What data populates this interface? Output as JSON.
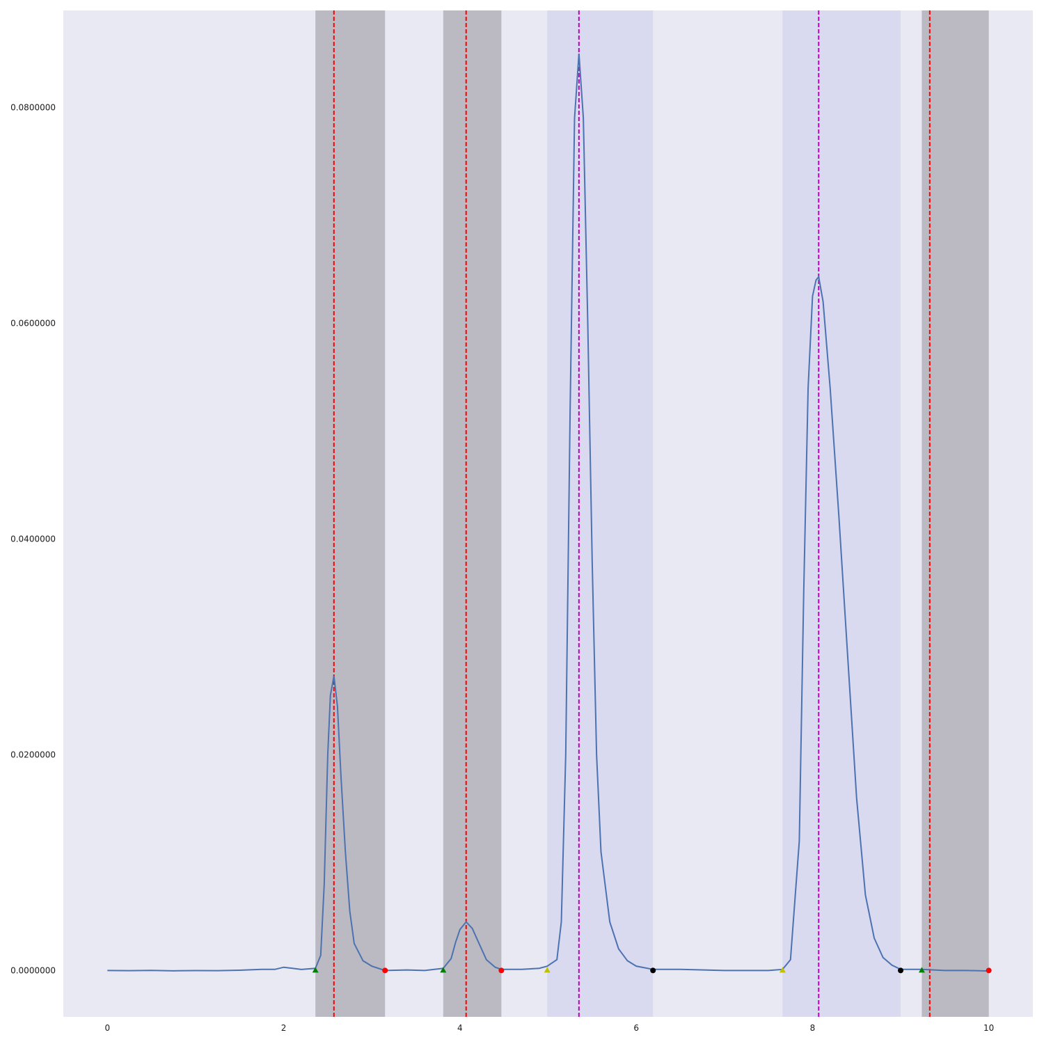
{
  "chart_data": {
    "type": "line",
    "title": "",
    "xlabel": "",
    "ylabel": "",
    "xlim": [
      -0.5,
      10.5
    ],
    "ylim": [
      -0.0043,
      0.089
    ],
    "grid": false,
    "colors": {
      "background": "#e9e9f3",
      "line": "#4c72b0",
      "gray_region": "#bbbac3",
      "blue_region": "#d9d9f0",
      "red_dashed": "#ff0000",
      "magenta_dashed": "#c000c0",
      "start_marker_green": "#008000",
      "start_marker_yellow": "#c0c000",
      "end_marker_red": "#ff0000",
      "end_marker_black": "#000000"
    },
    "x_ticks": [
      {
        "value": 0,
        "label": "0"
      },
      {
        "value": 2,
        "label": "2"
      },
      {
        "value": 4,
        "label": "4"
      },
      {
        "value": 6,
        "label": "6"
      },
      {
        "value": 8,
        "label": "8"
      },
      {
        "value": 10,
        "label": "10"
      }
    ],
    "y_ticks": [
      {
        "value": 0.0,
        "label": "0.0000000"
      },
      {
        "value": 0.02,
        "label": "0.0200000"
      },
      {
        "value": 0.04,
        "label": "0.0400000"
      },
      {
        "value": 0.06,
        "label": "0.0600000"
      },
      {
        "value": 0.08,
        "label": "0.0800000"
      }
    ],
    "peaks": [
      {
        "start": 2.36,
        "apex": 2.57,
        "end": 3.15,
        "height": 0.0273,
        "region": "gray",
        "line": "red",
        "start_marker": "green-triangle",
        "end_marker": "red-circle"
      },
      {
        "start": 3.81,
        "apex": 4.07,
        "end": 4.47,
        "height": 0.0045,
        "region": "gray",
        "line": "red",
        "start_marker": "green-triangle",
        "end_marker": "red-circle"
      },
      {
        "start": 4.99,
        "apex": 5.35,
        "end": 6.19,
        "height": 0.085,
        "region": "blue",
        "line": "magenta",
        "start_marker": "yellow-triangle",
        "end_marker": "black-circle"
      },
      {
        "start": 7.66,
        "apex": 8.07,
        "end": 9.0,
        "height": 0.0643,
        "region": "blue",
        "line": "magenta",
        "start_marker": "yellow-triangle",
        "end_marker": "black-circle"
      },
      {
        "start": 9.24,
        "apex": 9.33,
        "end": 10.0,
        "height": 0.0,
        "region": "gray",
        "line": "red",
        "start_marker": "green-triangle",
        "end_marker": "red-circle"
      }
    ],
    "series": [
      {
        "x": [
          0.0,
          0.25,
          0.5,
          0.75,
          1.0,
          1.25,
          1.5,
          1.75,
          1.9,
          2.0,
          2.1,
          2.2,
          2.36,
          2.42,
          2.46,
          2.5,
          2.53,
          2.57,
          2.61,
          2.65,
          2.7,
          2.75,
          2.8,
          2.9,
          3.0,
          3.15,
          3.4,
          3.6,
          3.81,
          3.9,
          3.95,
          4.0,
          4.07,
          4.14,
          4.2,
          4.3,
          4.4,
          4.47,
          4.7,
          4.9,
          4.99,
          5.1,
          5.15,
          5.2,
          5.25,
          5.3,
          5.35,
          5.4,
          5.45,
          5.5,
          5.55,
          5.6,
          5.7,
          5.8,
          5.9,
          6.0,
          6.19,
          6.5,
          7.0,
          7.3,
          7.5,
          7.66,
          7.75,
          7.85,
          7.9,
          7.95,
          8.0,
          8.04,
          8.07,
          8.12,
          8.2,
          8.3,
          8.4,
          8.5,
          8.6,
          8.7,
          8.8,
          8.9,
          9.0,
          9.24,
          9.5,
          9.75,
          10.0
        ],
        "y": [
          0.0,
          -2e-05,
          1e-05,
          -3e-05,
          -1e-05,
          -2e-05,
          2e-05,
          0.0001,
          0.0001,
          0.0003,
          0.0002,
          0.0001,
          0.0002,
          0.0014,
          0.008,
          0.02,
          0.0255,
          0.0273,
          0.0245,
          0.018,
          0.011,
          0.0055,
          0.0025,
          0.0009,
          0.0004,
          0.0,
          5e-05,
          0.0,
          0.0002,
          0.0011,
          0.0026,
          0.0038,
          0.0045,
          0.0039,
          0.0028,
          0.001,
          0.0003,
          0.0001,
          0.0001,
          0.0002,
          0.0004,
          0.001,
          0.0045,
          0.02,
          0.052,
          0.079,
          0.085,
          0.079,
          0.06,
          0.038,
          0.02,
          0.011,
          0.0045,
          0.002,
          0.0009,
          0.0004,
          0.0001,
          0.0001,
          0.0,
          0.0,
          0.0,
          0.0001,
          0.001,
          0.012,
          0.035,
          0.054,
          0.0625,
          0.064,
          0.0643,
          0.062,
          0.054,
          0.042,
          0.029,
          0.016,
          0.007,
          0.003,
          0.0012,
          0.0005,
          0.0001,
          0.0001,
          0.0,
          0.0,
          -5e-05
        ]
      }
    ]
  }
}
